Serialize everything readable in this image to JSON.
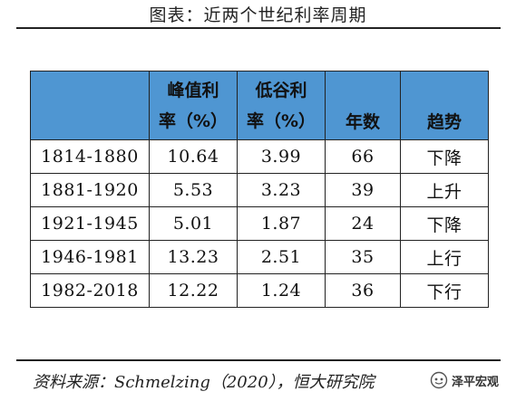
{
  "title": "图表：近两个世纪利率周期",
  "table": {
    "headers": [
      {
        "lines": [
          "",
          ""
        ]
      },
      {
        "lines": [
          "峰值利",
          "率（%）"
        ]
      },
      {
        "lines": [
          "低谷利",
          "率（%）"
        ]
      },
      {
        "lines": [
          "年数"
        ]
      },
      {
        "lines": [
          "趋势"
        ]
      }
    ],
    "rows": [
      [
        "1814-1880",
        "10.64",
        "3.99",
        "66",
        "下降"
      ],
      [
        "1881-1920",
        "5.53",
        "3.23",
        "39",
        "上升"
      ],
      [
        "1921-1945",
        "5.01",
        "1.87",
        "24",
        "下降"
      ],
      [
        "1946-1981",
        "13.23",
        "2.51",
        "35",
        "上行"
      ],
      [
        "1982-2018",
        "12.22",
        "1.24",
        "36",
        "下行"
      ]
    ]
  },
  "source": "资料来源：Schmelzing（2020），恒大研究院",
  "watermark": {
    "text": "泽平宏观",
    "icon": "wechat-channel-icon"
  },
  "colors": {
    "header_bg": "#4f96d2",
    "border": "#222222"
  }
}
